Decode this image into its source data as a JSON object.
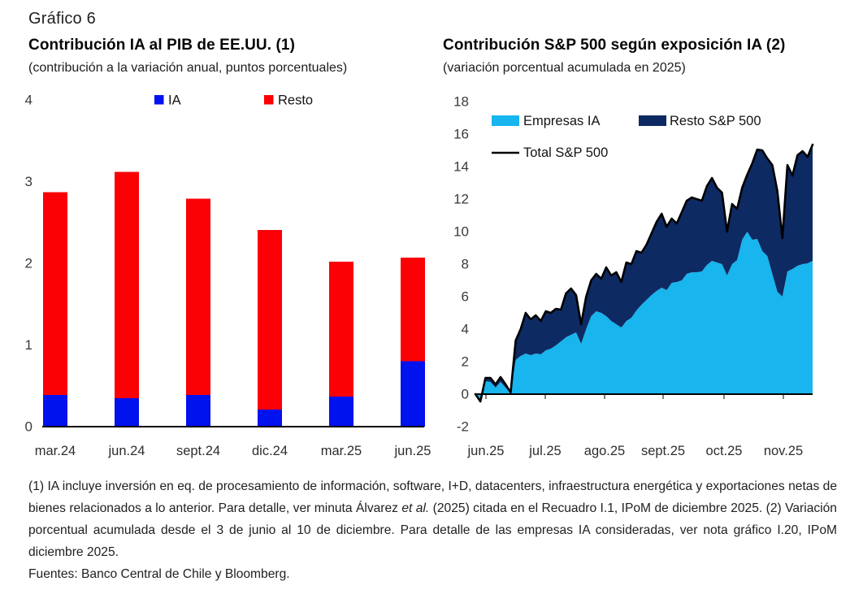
{
  "page": {
    "title": "Gráfico 6"
  },
  "charts": {
    "left": {
      "title": "Contribución IA al PIB de EE.UU. (1)",
      "subtitle": "(contribución a la variación anual, puntos porcentuales)"
    },
    "right": {
      "title": "Contribución S&P 500 según exposición IA (2)",
      "subtitle": "(variación porcentual acumulada en 2025)"
    }
  },
  "chart_data": [
    {
      "type": "bar",
      "stacked": true,
      "title": "Contribución IA al PIB de EE.UU. (1)",
      "subtitle": "(contribución a la variación anual, puntos porcentuales)",
      "categories": [
        "mar.24",
        "jun.24",
        "sept.24",
        "dic.24",
        "mar.25",
        "jun.25"
      ],
      "series": [
        {
          "name": "IA",
          "color": "#0012EE",
          "values": [
            0.39,
            0.35,
            0.39,
            0.21,
            0.37,
            0.8
          ]
        },
        {
          "name": "Resto",
          "color": "#FB0005",
          "values": [
            2.48,
            2.77,
            2.4,
            2.2,
            1.65,
            1.27
          ]
        }
      ],
      "ylim": [
        0,
        4
      ],
      "yticks": [
        0,
        1,
        2,
        3,
        4
      ],
      "grid": false,
      "legend_position": "top"
    },
    {
      "type": "area",
      "stacked": true,
      "title": "Contribución S&P 500 según exposición IA (2)",
      "subtitle": "(variación porcentual acumulada en 2025)",
      "x_tick_labels": [
        "jun.25",
        "jul.25",
        "ago.25",
        "sept.25",
        "oct.25",
        "nov.25"
      ],
      "ylim": [
        -2,
        18
      ],
      "yticks": [
        -2,
        0,
        2,
        4,
        6,
        8,
        10,
        12,
        14,
        16,
        18
      ],
      "grid": false,
      "legend_position": "top-left",
      "series": [
        {
          "name": "Empresas IA",
          "color": "#18B5EE",
          "values": [
            0,
            -0.4,
            0.8,
            0.75,
            0.4,
            0.75,
            0.4,
            0.05,
            2.1,
            2.35,
            2.5,
            2.4,
            2.5,
            2.45,
            2.7,
            2.8,
            3.0,
            3.25,
            3.5,
            3.65,
            3.8,
            3.1,
            4.0,
            4.8,
            5.1,
            5.0,
            4.8,
            4.5,
            4.3,
            4.1,
            4.5,
            4.7,
            5.15,
            5.5,
            5.8,
            6.1,
            6.35,
            6.55,
            6.4,
            6.85,
            6.9,
            7.0,
            7.4,
            7.5,
            7.5,
            7.55,
            7.95,
            8.2,
            8.1,
            8.0,
            7.3,
            8.0,
            8.25,
            9.5,
            10.0,
            9.5,
            9.55,
            8.8,
            8.5,
            7.4,
            6.3,
            6.0,
            7.55,
            7.7,
            7.9,
            8.0,
            8.05,
            8.2
          ]
        },
        {
          "name": "Resto S&P 500",
          "color": "#0E2A63",
          "values": [
            0,
            -0.05,
            0.2,
            0.25,
            0.2,
            0.3,
            0.2,
            0.05,
            1.2,
            1.65,
            2.5,
            2.2,
            2.35,
            2.05,
            2.4,
            2.2,
            2.25,
            1.95,
            2.7,
            2.85,
            2.3,
            1.2,
            2.0,
            2.2,
            2.3,
            2.1,
            3.0,
            2.8,
            3.2,
            2.8,
            3.6,
            3.3,
            3.65,
            3.2,
            3.4,
            3.8,
            4.25,
            4.55,
            3.9,
            3.95,
            3.6,
            4.2,
            4.5,
            4.6,
            4.5,
            4.35,
            4.85,
            5.1,
            4.6,
            4.4,
            2.7,
            3.7,
            3.15,
            3.2,
            3.5,
            4.7,
            5.5,
            6.2,
            6.0,
            6.7,
            6.2,
            3.6,
            6.55,
            5.75,
            6.8,
            6.95,
            6.55,
            7.15
          ]
        }
      ],
      "total_line": {
        "name": "Total S&P 500",
        "color": "#000000",
        "values": [
          0,
          -0.45,
          1.0,
          1.0,
          0.6,
          1.05,
          0.6,
          0.1,
          3.3,
          4.0,
          5.0,
          4.6,
          4.85,
          4.5,
          5.1,
          5.0,
          5.25,
          5.2,
          6.2,
          6.5,
          6.1,
          4.3,
          6.0,
          7.0,
          7.4,
          7.1,
          7.8,
          7.3,
          7.5,
          6.9,
          8.1,
          8.0,
          8.8,
          8.7,
          9.2,
          9.9,
          10.6,
          11.1,
          10.3,
          10.8,
          10.5,
          11.2,
          11.9,
          12.1,
          12.0,
          11.9,
          12.8,
          13.3,
          12.7,
          12.4,
          10.0,
          11.7,
          11.4,
          12.7,
          13.5,
          14.2,
          15.05,
          15.0,
          14.5,
          14.1,
          12.5,
          9.6,
          14.1,
          13.45,
          14.7,
          14.95,
          14.6,
          15.35
        ]
      }
    }
  ],
  "footnote": {
    "part1": "(1) IA incluye inversión en eq. de procesamiento de información, software, I+D, datacenters, infraestructura energética y exportaciones netas de bienes relacionados a lo anterior. Para detalle, ver minuta Álvarez ",
    "italic": "et al.",
    "part2": " (2025) citada en el Recuadro I.1, IPoM de diciembre 2025. (2) Variación porcentual acumulada desde el 3 de junio al 10 de diciembre. Para detalle de las empresas IA consideradas, ver nota gráfico I.20, IPoM diciembre 2025.",
    "fuentes": "Fuentes: Banco Central de Chile y Bloomberg."
  }
}
